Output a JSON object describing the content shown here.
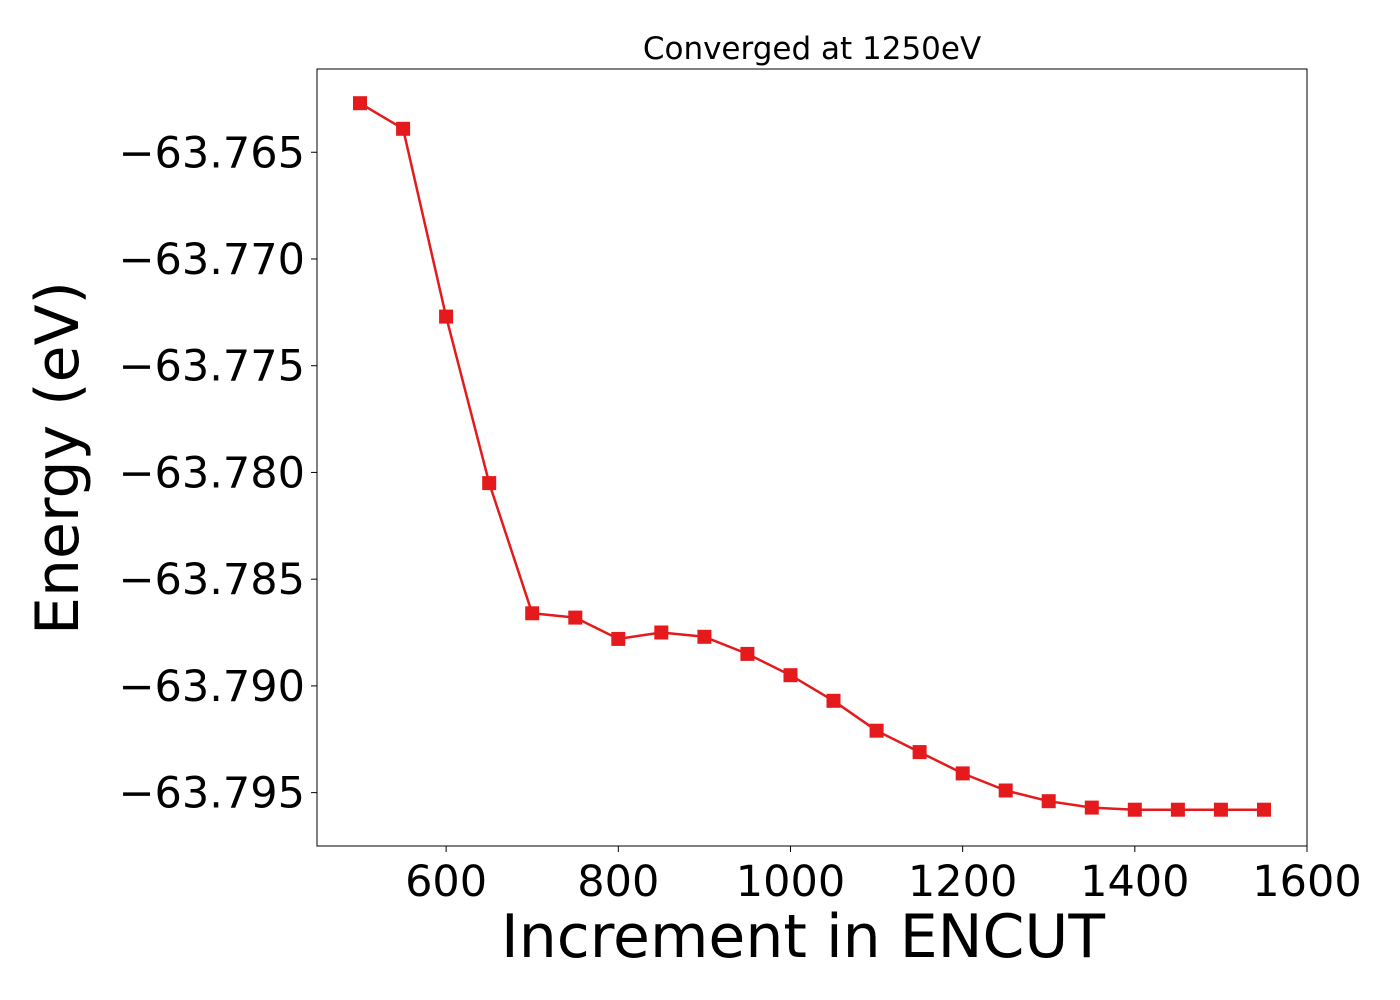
{
  "chart_data": {
    "type": "line",
    "title": "Converged at 1250eV",
    "xlabel": "Increment in ENCUT",
    "ylabel": "Energy (eV)",
    "xlim": [
      450,
      1600
    ],
    "ylim": [
      -63.7975,
      -63.7611
    ],
    "xticks": [
      600,
      800,
      1000,
      1200,
      1400,
      1600
    ],
    "xtick_labels": [
      "600",
      "800",
      "1000",
      "1200",
      "1400",
      "1600"
    ],
    "yticks": [
      -63.765,
      -63.77,
      -63.775,
      -63.78,
      -63.785,
      -63.79,
      -63.795
    ],
    "ytick_labels": [
      "−63.765",
      "−63.770",
      "−63.775",
      "−63.780",
      "−63.785",
      "−63.790",
      "−63.795"
    ],
    "grid": false,
    "legend": "none",
    "series": [
      {
        "color": "#e41a1c",
        "marker": "square",
        "x": [
          500,
          550,
          600,
          650,
          700,
          750,
          800,
          850,
          900,
          950,
          1000,
          1050,
          1100,
          1150,
          1200,
          1250,
          1300,
          1350,
          1400,
          1450,
          1500,
          1550
        ],
        "y": [
          -63.7627,
          -63.7639,
          -63.7727,
          -63.7805,
          -63.7866,
          -63.7868,
          -63.7878,
          -63.7875,
          -63.7877,
          -63.7885,
          -63.7895,
          -63.7907,
          -63.7921,
          -63.7931,
          -63.7941,
          -63.7949,
          -63.7954,
          -63.7957,
          -63.7958,
          -63.7958,
          -63.7958,
          -63.7958
        ]
      }
    ]
  }
}
